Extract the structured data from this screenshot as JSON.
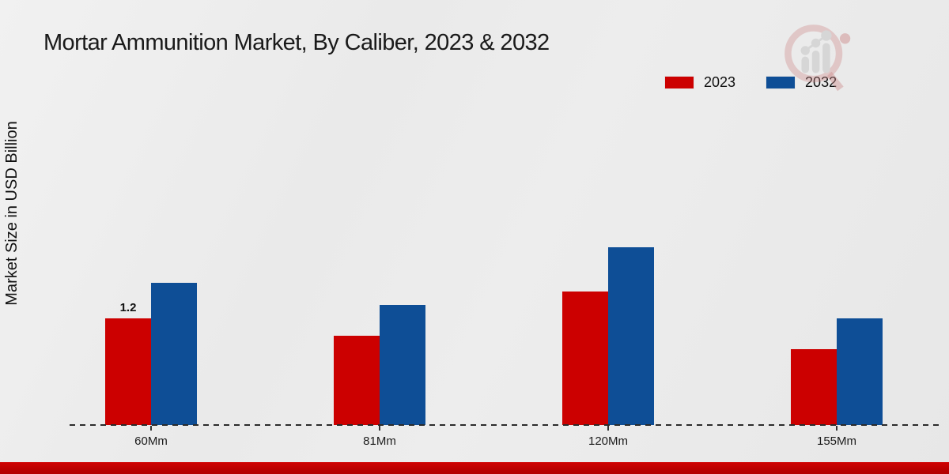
{
  "title": "Mortar Ammunition Market, By Caliber, 2023 & 2032",
  "y_axis_label": "Market Size in USD Billion",
  "legend": [
    {
      "label": "2023",
      "color": "#cc0000"
    },
    {
      "label": "2032",
      "color": "#0e4e96"
    }
  ],
  "watermark_icon": "magnifier-bar-chart-logo",
  "colors": {
    "series_2023": "#cc0000",
    "series_2032": "#0e4e96",
    "bottom_strip": "#bb0000",
    "background": "#eaeaea",
    "axis": "#2b2b2b"
  },
  "chart_data": {
    "type": "bar",
    "title": "Mortar Ammunition Market, By Caliber, 2023 & 2032",
    "xlabel": "",
    "ylabel": "Market Size in USD Billion",
    "categories": [
      "60Mm",
      "81Mm",
      "120Mm",
      "155Mm"
    ],
    "series": [
      {
        "name": "2023",
        "color": "#cc0000",
        "values": [
          1.2,
          1.0,
          1.5,
          0.85
        ]
      },
      {
        "name": "2032",
        "color": "#0e4e96",
        "values": [
          1.6,
          1.35,
          2.0,
          1.2
        ]
      }
    ],
    "ylim": [
      0,
      2.2
    ],
    "grid": false,
    "y_axis_ticks_visible": false,
    "legend_position": "top-right",
    "bar_labels": [
      {
        "series": "2023",
        "category": "60Mm",
        "text": "1.2"
      }
    ]
  }
}
